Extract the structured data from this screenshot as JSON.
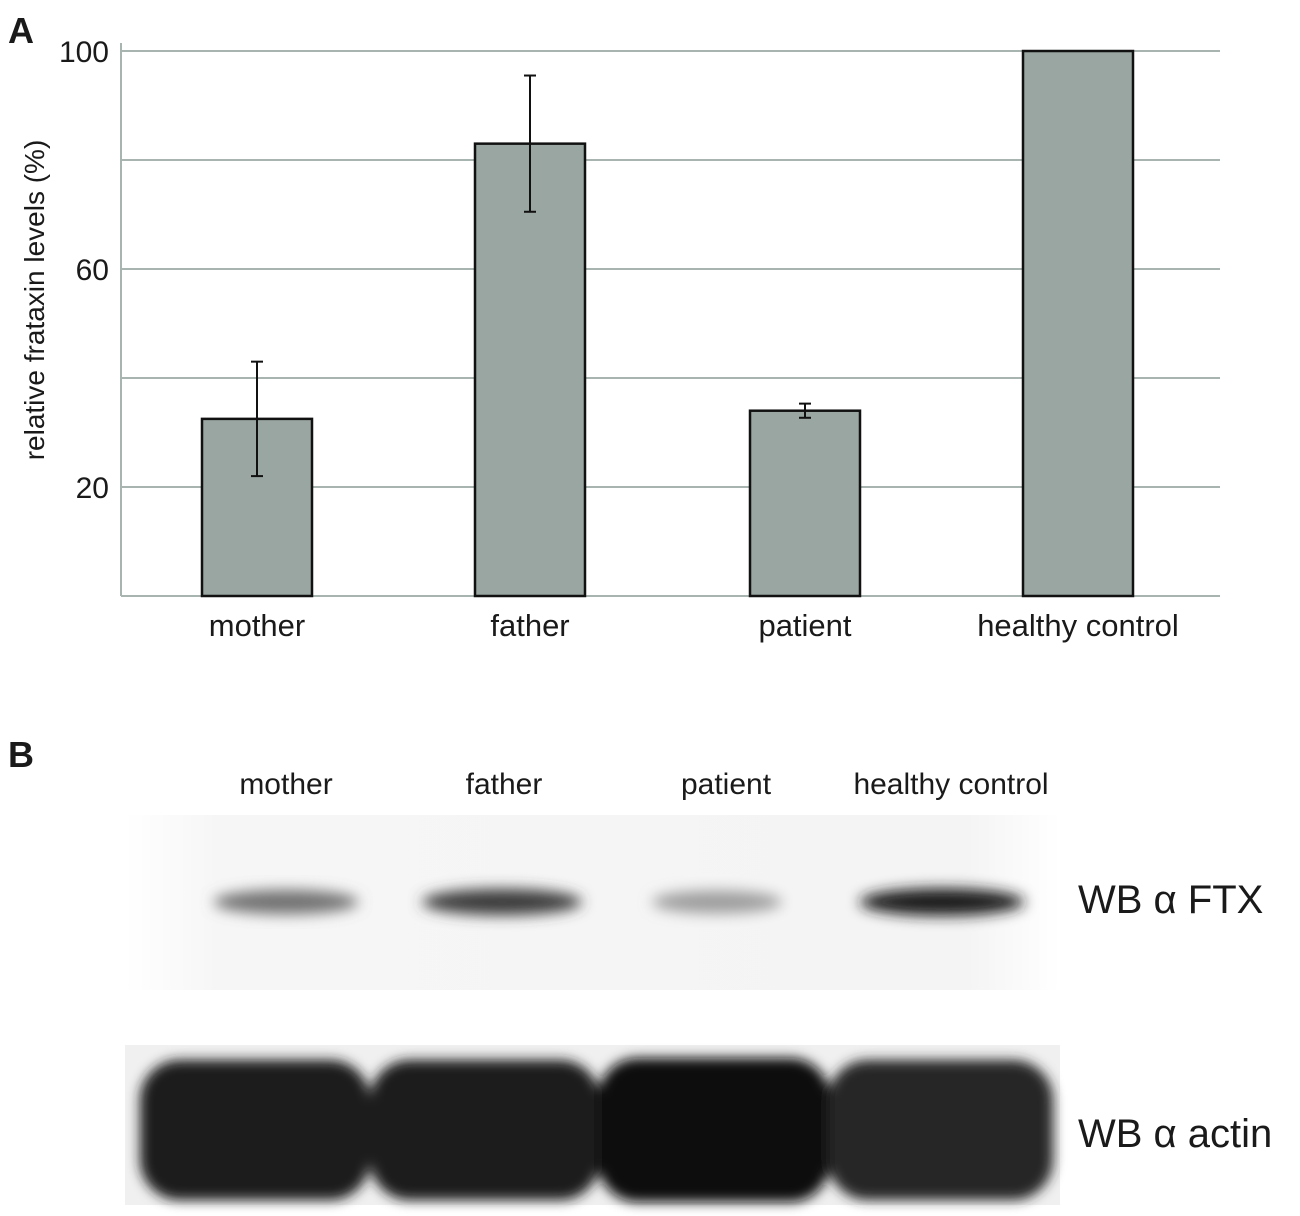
{
  "panel_a_label": "A",
  "panel_b_label": "B",
  "chart_data": {
    "type": "bar",
    "categories": [
      "mother",
      "father",
      "patient",
      "healthy control"
    ],
    "values": [
      32.5,
      83,
      34,
      100
    ],
    "errors": [
      10.5,
      12.5,
      1.3,
      0
    ],
    "ylabel": "relative frataxin levels (%)",
    "xlabel": "",
    "ylim": [
      0,
      100
    ],
    "yticks": [
      20,
      60,
      100
    ],
    "gridlines": [
      20,
      40,
      60,
      80,
      100
    ],
    "grid": true,
    "bar_color": "#9aa6a2",
    "grid_color": "#a8b4b0"
  },
  "blot": {
    "lanes": [
      "mother",
      "father",
      "patient",
      "healthy control"
    ],
    "ftx_label": "WB α FTX",
    "actin_label": "WB α actin",
    "ftx_intensity": [
      0.55,
      0.8,
      0.35,
      0.95
    ]
  }
}
